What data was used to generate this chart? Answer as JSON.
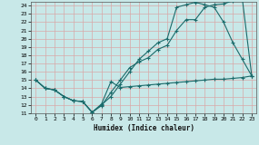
{
  "xlabel": "Humidex (Indice chaleur)",
  "xlim": [
    -0.5,
    23.5
  ],
  "ylim": [
    11,
    24.5
  ],
  "yticks": [
    11,
    12,
    13,
    14,
    15,
    16,
    17,
    18,
    19,
    20,
    21,
    22,
    23,
    24
  ],
  "xticks": [
    0,
    1,
    2,
    3,
    4,
    5,
    6,
    7,
    8,
    9,
    10,
    11,
    12,
    13,
    14,
    15,
    16,
    17,
    18,
    19,
    20,
    21,
    22,
    23
  ],
  "bg_color": "#c8e8e8",
  "grid_color": "#d8a8a8",
  "line_color": "#1a6b6b",
  "line1_x": [
    0,
    1,
    2,
    3,
    4,
    5,
    6,
    7,
    8,
    9,
    10,
    11,
    12,
    13,
    14,
    15,
    16,
    17,
    18,
    19,
    20,
    21,
    22,
    23
  ],
  "line1_y": [
    15,
    14,
    13.8,
    13,
    12.5,
    12.4,
    11.1,
    11.9,
    13.5,
    15.0,
    16.5,
    17.2,
    17.7,
    18.7,
    19.2,
    21.0,
    22.3,
    22.3,
    23.8,
    24.1,
    24.2,
    24.6,
    24.8,
    15.5
  ],
  "line2_x": [
    0,
    1,
    2,
    3,
    4,
    5,
    6,
    7,
    8,
    9,
    10,
    11,
    12,
    13,
    14,
    15,
    16,
    17,
    18,
    19,
    20,
    21,
    22,
    23
  ],
  "line2_y": [
    15,
    14,
    13.8,
    13,
    12.5,
    12.4,
    11.1,
    12.0,
    13.0,
    14.5,
    16.0,
    17.5,
    18.5,
    19.5,
    20.0,
    23.8,
    24.1,
    24.4,
    24.1,
    23.8,
    22.0,
    19.5,
    17.5,
    15.5
  ],
  "line3_x": [
    0,
    1,
    2,
    3,
    4,
    5,
    6,
    7,
    8,
    9,
    10,
    11,
    12,
    13,
    14,
    15,
    16,
    17,
    18,
    19,
    20,
    21,
    22,
    23
  ],
  "line3_y": [
    15,
    14,
    13.8,
    13,
    12.5,
    12.4,
    11.1,
    12.1,
    14.8,
    14.1,
    14.2,
    14.3,
    14.4,
    14.5,
    14.6,
    14.7,
    14.8,
    14.9,
    15.0,
    15.1,
    15.1,
    15.2,
    15.3,
    15.5
  ]
}
